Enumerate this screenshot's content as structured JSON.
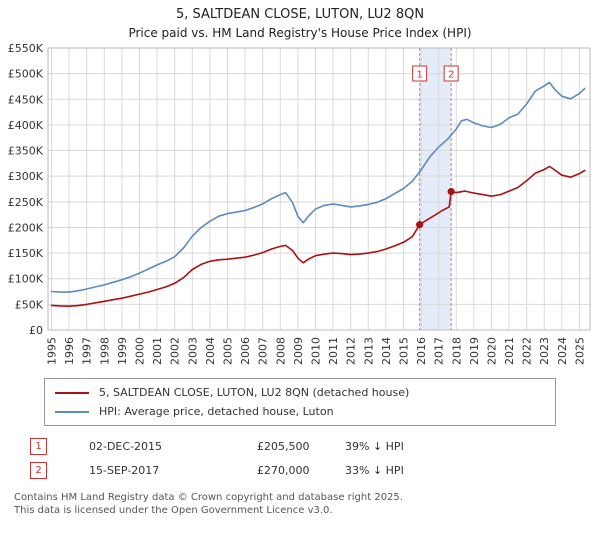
{
  "header": {
    "title": "5, SALTDEAN CLOSE, LUTON, LU2 8QN",
    "subtitle": "Price paid vs. HM Land Registry's House Price Index (HPI)"
  },
  "chart_data": {
    "type": "line",
    "title": "5, SALTDEAN CLOSE, LUTON, LU2 8QN",
    "subtitle": "Price paid vs. HM Land Registry's House Price Index (HPI)",
    "ylim": [
      0,
      550000
    ],
    "ytick_step": 50000,
    "ytick_labels": [
      "£0",
      "£50K",
      "£100K",
      "£150K",
      "£200K",
      "£250K",
      "£300K",
      "£350K",
      "£400K",
      "£450K",
      "£500K",
      "£550K"
    ],
    "xlim": [
      1994.8,
      2025.6
    ],
    "xticks": [
      1995,
      1996,
      1997,
      1998,
      1999,
      2000,
      2001,
      2002,
      2003,
      2004,
      2005,
      2006,
      2007,
      2008,
      2009,
      2010,
      2011,
      2012,
      2013,
      2014,
      2015,
      2016,
      2017,
      2018,
      2019,
      2020,
      2021,
      2022,
      2023,
      2024,
      2025
    ],
    "grid": true,
    "legend_position": "bottom",
    "colors": {
      "price": "#aa1111",
      "hpi": "#5c8bc0",
      "band": "#e4ecf9",
      "sale_line": "#d97b7b",
      "grid": "#d9d9d9",
      "border": "#bbbbbb",
      "marker": "#aa1111"
    },
    "series": [
      {
        "name": "5, SALTDEAN CLOSE, LUTON, LU2 8QN (detached house)",
        "color": "#aa1111",
        "points": [
          [
            1995.0,
            48000
          ],
          [
            1995.5,
            47000
          ],
          [
            1996.0,
            46500
          ],
          [
            1996.5,
            47500
          ],
          [
            1997.0,
            50000
          ],
          [
            1997.5,
            53000
          ],
          [
            1998.0,
            56000
          ],
          [
            1998.5,
            59000
          ],
          [
            1999.0,
            62000
          ],
          [
            1999.5,
            66000
          ],
          [
            2000.0,
            70000
          ],
          [
            2000.5,
            74000
          ],
          [
            2001.0,
            79000
          ],
          [
            2001.5,
            84000
          ],
          [
            2002.0,
            91000
          ],
          [
            2002.5,
            102000
          ],
          [
            2003.0,
            118000
          ],
          [
            2003.5,
            128000
          ],
          [
            2004.0,
            134000
          ],
          [
            2004.5,
            137000
          ],
          [
            2005.0,
            138000
          ],
          [
            2005.5,
            140000
          ],
          [
            2006.0,
            142000
          ],
          [
            2006.5,
            146000
          ],
          [
            2007.0,
            151000
          ],
          [
            2007.5,
            158000
          ],
          [
            2008.0,
            163000
          ],
          [
            2008.3,
            165000
          ],
          [
            2008.7,
            155000
          ],
          [
            2009.0,
            140000
          ],
          [
            2009.3,
            131000
          ],
          [
            2009.6,
            138000
          ],
          [
            2010.0,
            145000
          ],
          [
            2010.5,
            148000
          ],
          [
            2011.0,
            150000
          ],
          [
            2011.5,
            149000
          ],
          [
            2012.0,
            147000
          ],
          [
            2012.5,
            148000
          ],
          [
            2013.0,
            150000
          ],
          [
            2013.5,
            153000
          ],
          [
            2014.0,
            158000
          ],
          [
            2014.5,
            164000
          ],
          [
            2015.0,
            171000
          ],
          [
            2015.5,
            182000
          ],
          [
            2015.92,
            205500
          ],
          [
            2016.3,
            214000
          ],
          [
            2016.8,
            224000
          ],
          [
            2017.2,
            233000
          ],
          [
            2017.6,
            240000
          ],
          [
            2017.71,
            270000
          ],
          [
            2018.0,
            268000
          ],
          [
            2018.5,
            271000
          ],
          [
            2019.0,
            267000
          ],
          [
            2019.5,
            264000
          ],
          [
            2020.0,
            261000
          ],
          [
            2020.5,
            264000
          ],
          [
            2021.0,
            271000
          ],
          [
            2021.5,
            278000
          ],
          [
            2022.0,
            291000
          ],
          [
            2022.5,
            306000
          ],
          [
            2023.0,
            313000
          ],
          [
            2023.3,
            319000
          ],
          [
            2023.6,
            312000
          ],
          [
            2024.0,
            302000
          ],
          [
            2024.5,
            298000
          ],
          [
            2025.0,
            305000
          ],
          [
            2025.3,
            311000
          ]
        ]
      },
      {
        "name": "HPI: Average price, detached house, Luton",
        "color": "#5c8bc0",
        "points": [
          [
            1995.0,
            75000
          ],
          [
            1995.5,
            74000
          ],
          [
            1996.0,
            74000
          ],
          [
            1996.5,
            76500
          ],
          [
            1997.0,
            80000
          ],
          [
            1997.5,
            84000
          ],
          [
            1998.0,
            88000
          ],
          [
            1998.5,
            93000
          ],
          [
            1999.0,
            98000
          ],
          [
            1999.5,
            104000
          ],
          [
            2000.0,
            111000
          ],
          [
            2000.5,
            119000
          ],
          [
            2001.0,
            127000
          ],
          [
            2001.5,
            134000
          ],
          [
            2002.0,
            143000
          ],
          [
            2002.5,
            160000
          ],
          [
            2003.0,
            183000
          ],
          [
            2003.5,
            200000
          ],
          [
            2004.0,
            212000
          ],
          [
            2004.5,
            222000
          ],
          [
            2005.0,
            227000
          ],
          [
            2005.5,
            230000
          ],
          [
            2006.0,
            233000
          ],
          [
            2006.5,
            239000
          ],
          [
            2007.0,
            246000
          ],
          [
            2007.5,
            256000
          ],
          [
            2008.0,
            264000
          ],
          [
            2008.3,
            268000
          ],
          [
            2008.7,
            248000
          ],
          [
            2009.0,
            222000
          ],
          [
            2009.3,
            209000
          ],
          [
            2009.6,
            222000
          ],
          [
            2010.0,
            236000
          ],
          [
            2010.5,
            243000
          ],
          [
            2011.0,
            246000
          ],
          [
            2011.5,
            243000
          ],
          [
            2012.0,
            240000
          ],
          [
            2012.5,
            242000
          ],
          [
            2013.0,
            245000
          ],
          [
            2013.5,
            249000
          ],
          [
            2014.0,
            256000
          ],
          [
            2014.5,
            266000
          ],
          [
            2015.0,
            276000
          ],
          [
            2015.5,
            290000
          ],
          [
            2016.0,
            312000
          ],
          [
            2016.5,
            338000
          ],
          [
            2017.0,
            357000
          ],
          [
            2017.5,
            372000
          ],
          [
            2018.0,
            392000
          ],
          [
            2018.3,
            408000
          ],
          [
            2018.6,
            411000
          ],
          [
            2019.0,
            404000
          ],
          [
            2019.5,
            398000
          ],
          [
            2020.0,
            395000
          ],
          [
            2020.5,
            401000
          ],
          [
            2021.0,
            414000
          ],
          [
            2021.5,
            421000
          ],
          [
            2022.0,
            441000
          ],
          [
            2022.5,
            466000
          ],
          [
            2023.0,
            476000
          ],
          [
            2023.3,
            483000
          ],
          [
            2023.6,
            469000
          ],
          [
            2024.0,
            456000
          ],
          [
            2024.5,
            451000
          ],
          [
            2025.0,
            461000
          ],
          [
            2025.3,
            471000
          ]
        ]
      }
    ],
    "sales": [
      {
        "num": "1",
        "date": "02-DEC-2015",
        "price": "£205,500",
        "hpi": "39% ↓ HPI",
        "x": 2015.92,
        "y": 205500
      },
      {
        "num": "2",
        "date": "15-SEP-2017",
        "price": "£270,000",
        "hpi": "33% ↓ HPI",
        "x": 2017.71,
        "y": 270000
      }
    ]
  },
  "footer": {
    "line1": "Contains HM Land Registry data © Crown copyright and database right 2025.",
    "line2": "This data is licensed under the Open Government Licence v3.0."
  }
}
